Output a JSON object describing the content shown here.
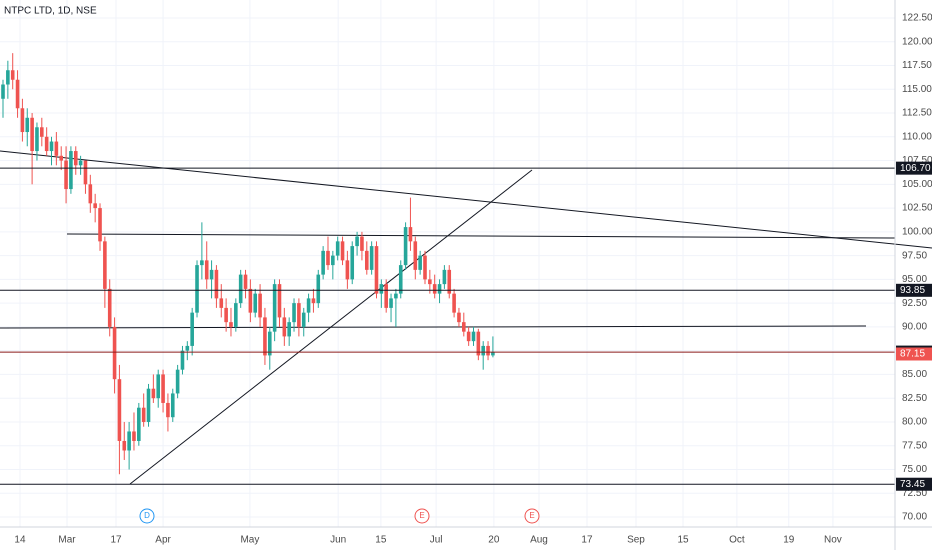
{
  "chart_data": {
    "type": "candlestick",
    "title": "NTPC LTD, 1D, NSE",
    "up_color": "#26a69a",
    "down_color": "#ef5350",
    "xlim": [
      -0.62,
      183.9
    ],
    "ylim": [
      68.95,
      124.39
    ],
    "open": [
      114,
      115.5,
      117,
      116,
      113,
      110.5,
      112,
      108.5,
      111,
      110,
      108.5,
      109.5,
      108,
      107.5,
      104.5,
      108.5,
      107,
      107.5,
      105,
      103,
      102.5,
      99,
      94,
      90,
      84.5,
      78,
      77,
      79,
      78,
      81.5,
      80,
      83.5,
      82.5,
      85,
      82,
      80.5,
      83,
      85.5,
      87.5,
      88,
      91.5,
      96.5,
      97,
      95,
      96,
      93,
      92,
      90.5,
      90,
      92.5,
      95.5,
      94,
      91.5,
      93.5,
      91,
      87,
      89.5,
      94.5,
      91,
      89,
      90.5,
      92.5,
      90,
      91.5,
      93,
      92.5,
      95.5,
      98,
      96.5,
      97.5,
      99,
      97,
      95,
      98.5,
      99.5,
      98,
      96,
      98.5,
      93.5,
      94.5,
      92,
      93,
      93.5,
      96.5,
      100.5,
      99,
      96,
      97.5,
      95,
      94.5,
      93.5,
      94.5,
      96,
      93.5,
      91.5,
      90.5,
      89.5,
      88.5,
      89.5,
      87,
      88,
      87
    ],
    "high": [
      116,
      118,
      118.8,
      117,
      114,
      113,
      112.5,
      111.5,
      112,
      111,
      110,
      110.5,
      109,
      109,
      109,
      109,
      108,
      107.5,
      106,
      104,
      103,
      99.5,
      95,
      91,
      86,
      80,
      80,
      81,
      82,
      83,
      84,
      85,
      85.5,
      85.5,
      83,
      83.5,
      86,
      88,
      88.5,
      92,
      97,
      101,
      99,
      97,
      96.5,
      94.5,
      93,
      92,
      93,
      96,
      96,
      95,
      94,
      94.5,
      92,
      90,
      95,
      95,
      92,
      91,
      93,
      93,
      92,
      93.5,
      94,
      96,
      98.5,
      99.5,
      98,
      99.5,
      99.5,
      98,
      99,
      100,
      100,
      99,
      99,
      99,
      95,
      95,
      93.5,
      94,
      97,
      101,
      103.6,
      99.5,
      98,
      98,
      96,
      95.5,
      95,
      96.5,
      96.5,
      94,
      92,
      91.5,
      90,
      90,
      89.8,
      88.5,
      88.5,
      89
    ],
    "low": [
      112,
      114,
      115,
      112,
      109.5,
      109,
      105,
      107.5,
      109,
      108,
      107,
      107,
      106.5,
      103,
      104,
      106,
      106,
      104,
      102,
      101,
      98,
      92,
      89,
      83,
      74.5,
      76,
      75,
      77,
      77.5,
      79.5,
      79.5,
      82,
      81.5,
      81,
      79,
      80,
      82.5,
      85,
      86.5,
      87,
      91,
      95,
      94,
      93,
      92,
      91,
      89.5,
      89,
      89.5,
      92,
      93,
      90.5,
      91,
      90,
      86,
      85.5,
      88.5,
      90,
      88,
      88,
      89.5,
      89,
      89,
      90.5,
      91.5,
      92,
      95,
      96,
      95,
      97,
      96.5,
      94,
      94.5,
      97.5,
      97,
      95.5,
      95.5,
      93,
      92,
      91.5,
      90.5,
      90,
      93,
      96,
      98,
      95,
      95.5,
      94.5,
      93.5,
      93,
      92.5,
      94,
      93,
      91,
      90,
      89,
      88,
      88,
      86.5,
      85.5,
      86.5,
      86.8
    ],
    "close": [
      115.5,
      117,
      116,
      113,
      110.5,
      112,
      108.5,
      111,
      110,
      108.5,
      109.5,
      108,
      107.5,
      104.5,
      108.5,
      107,
      107.5,
      105,
      103,
      102.5,
      99,
      94,
      90,
      84.5,
      78,
      77,
      79,
      78,
      81.5,
      80,
      83.5,
      82.5,
      85,
      82,
      80.5,
      83,
      85.5,
      87.5,
      88,
      91.5,
      96.5,
      97,
      95,
      96,
      93,
      92,
      90.5,
      90,
      92.5,
      95.5,
      94,
      91.5,
      93.5,
      91,
      87,
      89.5,
      94.5,
      91,
      89,
      90.5,
      92.5,
      90,
      91.5,
      93,
      92.5,
      95.5,
      98,
      96.5,
      97.5,
      99,
      97,
      95,
      98.5,
      99.5,
      98,
      96,
      98.5,
      93.5,
      94.5,
      92,
      93,
      93.5,
      96.5,
      100.5,
      99,
      96,
      97.5,
      95,
      94.5,
      93.5,
      94.5,
      96,
      93.5,
      91.5,
      90.5,
      89.5,
      88.5,
      89.5,
      87,
      88,
      87,
      87.35
    ],
    "yticks": [
      {
        "value": 70,
        "label": "70.00"
      },
      {
        "value": 72.5,
        "label": "72.50"
      },
      {
        "value": 75,
        "label": "75.00"
      },
      {
        "value": 77.5,
        "label": "77.50"
      },
      {
        "value": 80,
        "label": "80.00"
      },
      {
        "value": 82.5,
        "label": "82.50"
      },
      {
        "value": 85,
        "label": "85.00"
      },
      {
        "value": 87.5,
        "label": "87.50"
      },
      {
        "value": 90,
        "label": "90.00"
      },
      {
        "value": 92.5,
        "label": "92.50"
      },
      {
        "value": 95,
        "label": "95.00"
      },
      {
        "value": 97.5,
        "label": "97.50"
      },
      {
        "value": 100,
        "label": "100.00"
      },
      {
        "value": 102.5,
        "label": "102.50"
      },
      {
        "value": 105,
        "label": "105.00"
      },
      {
        "value": 107.5,
        "label": "107.50"
      },
      {
        "value": 110,
        "label": "110.00"
      },
      {
        "value": 112.5,
        "label": "112.50"
      },
      {
        "value": 115,
        "label": "115.00"
      },
      {
        "value": 117.5,
        "label": "117.50"
      },
      {
        "value": 120,
        "label": "120.00"
      },
      {
        "value": 122.5,
        "label": "122.50"
      }
    ],
    "xticks": [
      {
        "value": 3.5,
        "label": "14"
      },
      {
        "value": 13.2,
        "label": "Mar"
      },
      {
        "value": 23.3,
        "label": "17"
      },
      {
        "value": 33,
        "label": "Apr"
      },
      {
        "value": 50.9,
        "label": "May"
      },
      {
        "value": 69.1,
        "label": "Jun"
      },
      {
        "value": 77.9,
        "label": "15"
      },
      {
        "value": 89.3,
        "label": "Jul"
      },
      {
        "value": 101.2,
        "label": "20"
      },
      {
        "value": 110.5,
        "label": "Aug"
      },
      {
        "value": 120.4,
        "label": "17"
      },
      {
        "value": 130.5,
        "label": "Sep"
      },
      {
        "value": 140.2,
        "label": "15"
      },
      {
        "value": 151.3,
        "label": "Oct"
      },
      {
        "value": 162,
        "label": "19"
      },
      {
        "value": 171.1,
        "label": "Nov"
      }
    ],
    "levels": [
      {
        "value": 106.7,
        "label": "106.70",
        "color": "#131722",
        "line": true
      },
      {
        "value": 93.85,
        "label": "93.85",
        "color": "#131722",
        "line": true
      },
      {
        "value": 87.35,
        "label": "87.35",
        "color": "#131722",
        "line": true
      },
      {
        "value": 87.15,
        "label": "87.15",
        "color": "#ef5350",
        "line": false
      },
      {
        "value": 73.45,
        "label": "73.45",
        "color": "#131722",
        "line": true
      }
    ],
    "events": [
      {
        "label": "D",
        "color": "#2196f3"
      },
      {
        "label": "E",
        "color": "#ef5350"
      },
      {
        "label": "E",
        "color": "#ef5350"
      }
    ]
  }
}
